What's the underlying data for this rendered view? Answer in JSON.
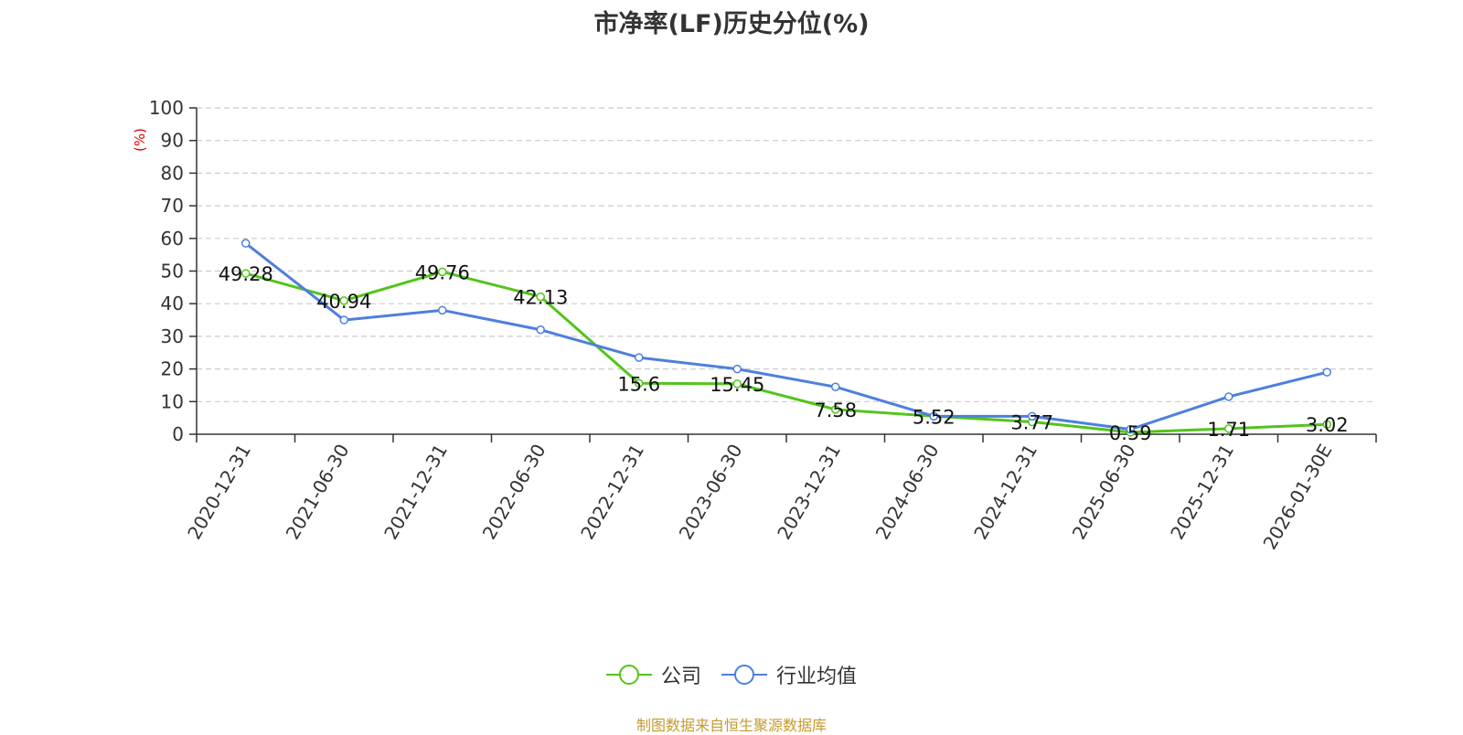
{
  "title": "市净率(LF)历史分位(%)",
  "source": "制图数据来自恒生聚源数据库",
  "chart_data": {
    "type": "line",
    "title": "市净率(LF)历史分位(%)",
    "ylabel": "(%)",
    "xlabel": "",
    "ylim": [
      0,
      100
    ],
    "yticks": [
      0,
      10,
      20,
      30,
      40,
      50,
      60,
      70,
      80,
      90,
      100
    ],
    "grid": true,
    "legend_position": "bottom-center",
    "categories": [
      "2020-12-31",
      "2021-06-30",
      "2021-12-31",
      "2022-06-30",
      "2022-12-31",
      "2023-06-30",
      "2023-12-31",
      "2024-06-30",
      "2024-12-31",
      "2025-06-30",
      "2025-12-31",
      "2026-01-30E"
    ],
    "series": [
      {
        "name": "公司",
        "color": "#52c41a",
        "values": [
          49.28,
          40.94,
          49.76,
          42.13,
          15.6,
          15.45,
          7.58,
          5.52,
          3.77,
          0.59,
          1.71,
          3.02
        ],
        "labels": [
          "49.28",
          "40.94",
          "49.76",
          "42.13",
          "15.6",
          "15.45",
          "7.58",
          "5.52",
          "3.77",
          "0.59",
          "1.71",
          "3.02"
        ]
      },
      {
        "name": "行业均值",
        "color": "#4e7fdd",
        "values": [
          58.5,
          35,
          38,
          32,
          23.5,
          20,
          14.5,
          5.5,
          5.5,
          1.5,
          11.5,
          19
        ]
      }
    ]
  }
}
